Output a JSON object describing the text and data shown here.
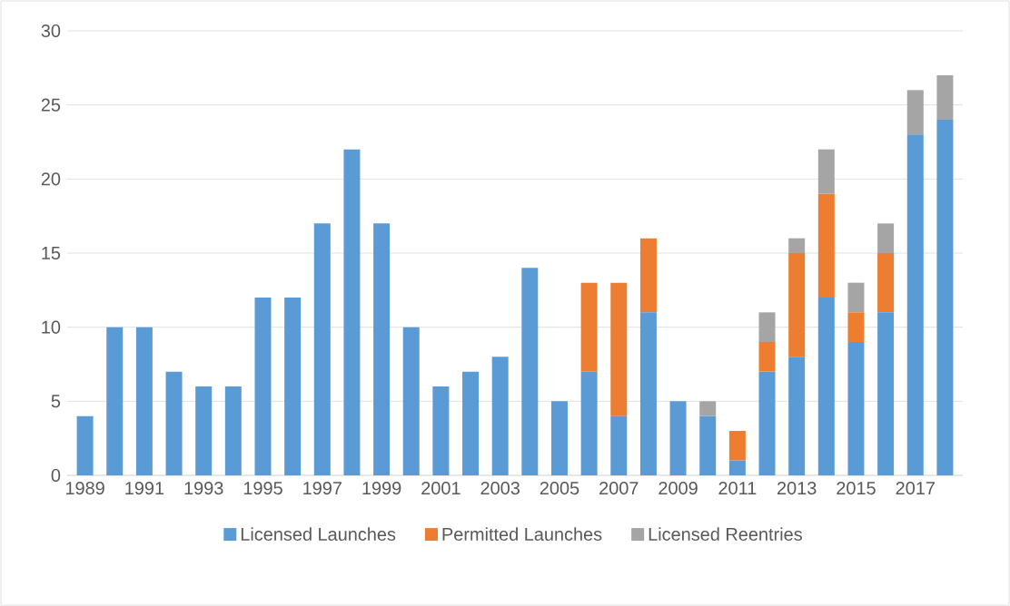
{
  "chart_data": {
    "type": "bar",
    "stacked": true,
    "categories": [
      "1989",
      null,
      "1991",
      null,
      "1993",
      null,
      "1995",
      null,
      "1997",
      null,
      "1999",
      null,
      "2001",
      null,
      "2003",
      null,
      "2005",
      null,
      "2007",
      null,
      "2009",
      null,
      "2011",
      null,
      "2013",
      null,
      "2015",
      null,
      "2017",
      null
    ],
    "series": [
      {
        "name": "Licensed Launches",
        "color": "#5b9bd5",
        "values": [
          4,
          10,
          10,
          7,
          6,
          6,
          12,
          12,
          17,
          22,
          17,
          10,
          6,
          7,
          8,
          14,
          5,
          7,
          4,
          11,
          5,
          4,
          1,
          7,
          8,
          12,
          9,
          11,
          23,
          24
        ]
      },
      {
        "name": "Permitted Launches",
        "color": "#ed7d31",
        "values": [
          0,
          0,
          0,
          0,
          0,
          0,
          0,
          0,
          0,
          0,
          0,
          0,
          0,
          0,
          0,
          0,
          0,
          6,
          9,
          5,
          0,
          0,
          2,
          2,
          7,
          7,
          2,
          4,
          0,
          0
        ]
      },
      {
        "name": "Licensed Reentries",
        "color": "#a5a5a5",
        "values": [
          0,
          0,
          0,
          0,
          0,
          0,
          0,
          0,
          0,
          0,
          0,
          0,
          0,
          0,
          0,
          0,
          0,
          0,
          0,
          0,
          0,
          1,
          0,
          2,
          1,
          3,
          2,
          2,
          3,
          3
        ]
      }
    ],
    "ylim": [
      0,
      30
    ],
    "yticks": [
      0,
      5,
      10,
      15,
      20,
      25,
      30
    ],
    "grid": "y",
    "legend": "bottom"
  }
}
